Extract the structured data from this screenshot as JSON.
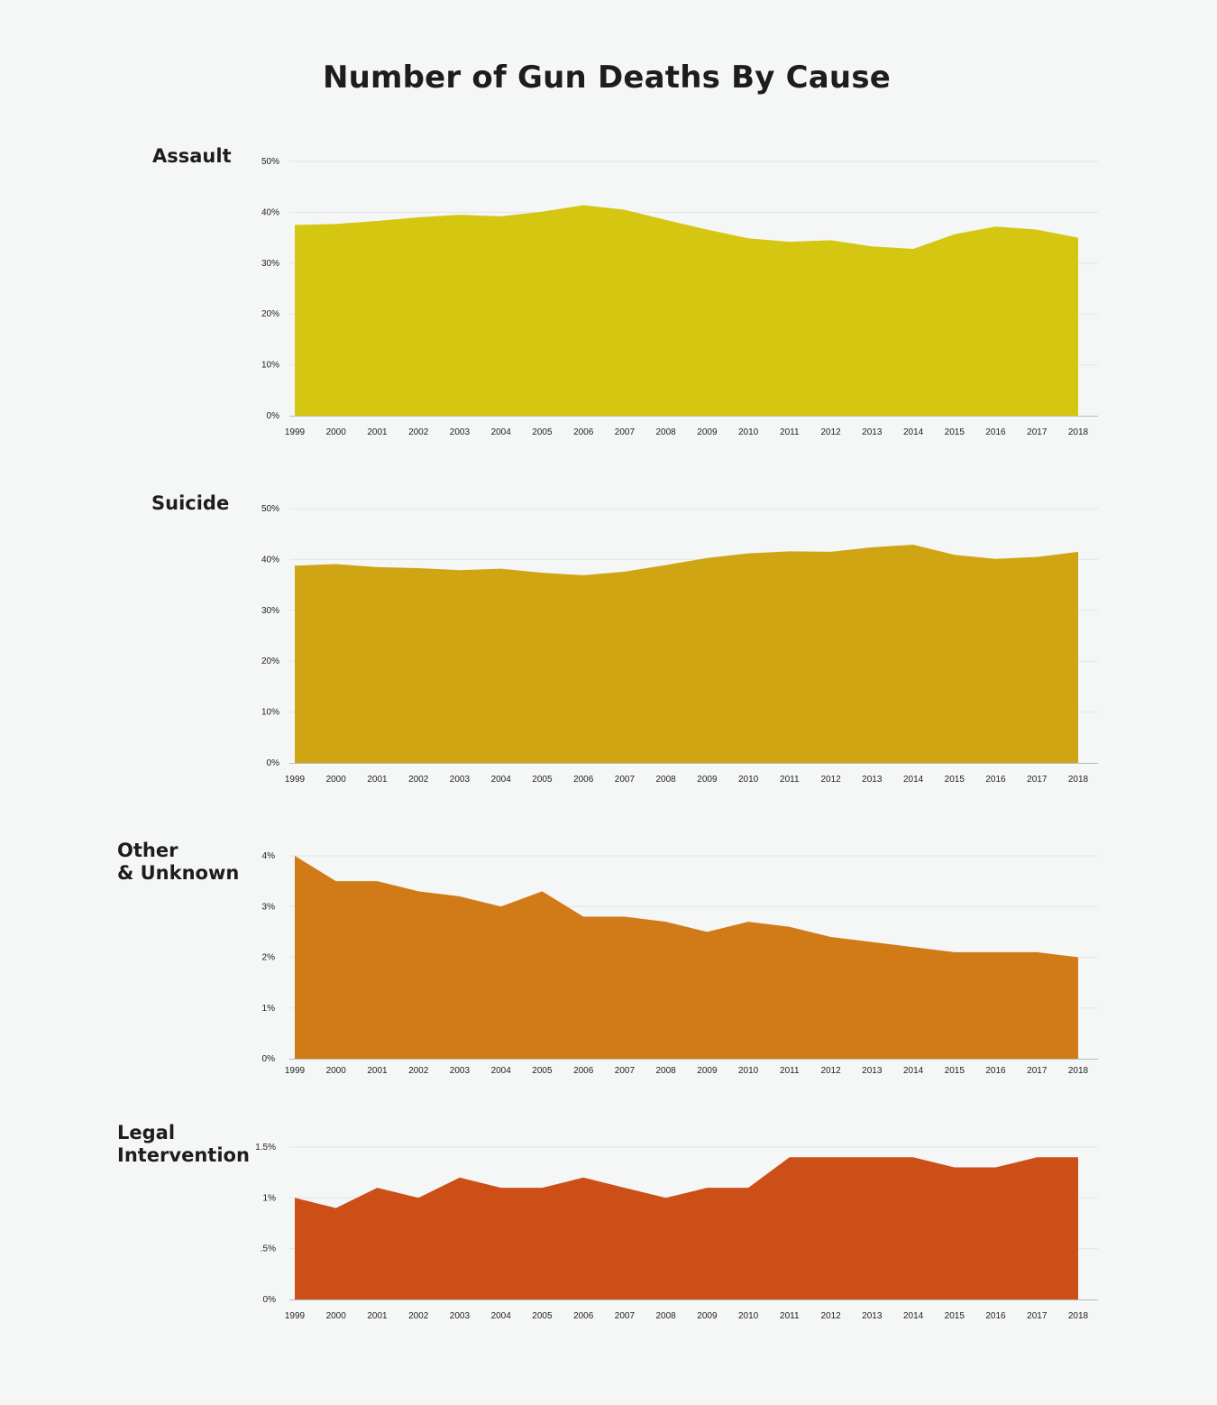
{
  "title": "Number of Gun Deaths By Cause",
  "chart_data": [
    {
      "type": "area",
      "label_lines": [
        "Assault"
      ],
      "color": "#d4c611",
      "x": [
        "1999",
        "2000",
        "2001",
        "2002",
        "2003",
        "2004",
        "2005",
        "2006",
        "2007",
        "2008",
        "2009",
        "2010",
        "2011",
        "2012",
        "2013",
        "2014",
        "2015",
        "2016",
        "2017",
        "2018"
      ],
      "values": [
        37.5,
        37.7,
        38.3,
        39.0,
        39.5,
        39.2,
        40.1,
        41.4,
        40.5,
        38.5,
        36.6,
        34.9,
        34.2,
        34.5,
        33.3,
        32.8,
        35.7,
        37.2,
        36.6,
        35.0
      ],
      "yticks": [
        "0%",
        "10%",
        "20%",
        "30%",
        "40%",
        "50%"
      ],
      "ylim": [
        0,
        50
      ],
      "grid": true
    },
    {
      "type": "area",
      "label_lines": [
        "Suicide"
      ],
      "color": "#cfa513",
      "x": [
        "1999",
        "2000",
        "2001",
        "2002",
        "2003",
        "2004",
        "2005",
        "2006",
        "2007",
        "2008",
        "2009",
        "2010",
        "2011",
        "2012",
        "2013",
        "2014",
        "2015",
        "2016",
        "2017",
        "2018"
      ],
      "values": [
        38.8,
        39.1,
        38.5,
        38.3,
        37.9,
        38.2,
        37.4,
        36.9,
        37.6,
        38.9,
        40.3,
        41.2,
        41.6,
        41.5,
        42.4,
        42.9,
        40.9,
        40.1,
        40.5,
        41.5
      ],
      "yticks": [
        "0%",
        "10%",
        "20%",
        "30%",
        "40%",
        "50%"
      ],
      "ylim": [
        0,
        50
      ],
      "grid": true
    },
    {
      "type": "area",
      "label_lines": [
        "Other",
        "& Unknown"
      ],
      "color": "#d07a18",
      "x": [
        "1999",
        "2000",
        "2001",
        "2002",
        "2003",
        "2004",
        "2005",
        "2006",
        "2007",
        "2008",
        "2009",
        "2010",
        "2011",
        "2012",
        "2013",
        "2014",
        "2015",
        "2016",
        "2017",
        "2018"
      ],
      "values": [
        4.0,
        3.5,
        3.5,
        3.3,
        3.2,
        3.0,
        3.3,
        2.8,
        2.8,
        2.7,
        2.5,
        2.7,
        2.6,
        2.4,
        2.3,
        2.2,
        2.1,
        2.1,
        2.1,
        2.0
      ],
      "yticks": [
        "0%",
        "1%",
        "2%",
        "3%",
        "4%"
      ],
      "ylim": [
        0,
        4
      ],
      "grid": true
    },
    {
      "type": "area",
      "label_lines": [
        "Legal",
        "Intervention"
      ],
      "color": "#cc4f18",
      "x": [
        "1999",
        "2000",
        "2001",
        "2002",
        "2003",
        "2004",
        "2005",
        "2006",
        "2007",
        "2008",
        "2009",
        "2010",
        "2011",
        "2012",
        "2013",
        "2014",
        "2015",
        "2016",
        "2017",
        "2018"
      ],
      "values": [
        1.0,
        0.9,
        1.1,
        1.0,
        1.2,
        1.1,
        1.1,
        1.2,
        1.1,
        1.0,
        1.1,
        1.1,
        1.4,
        1.4,
        1.4,
        1.4,
        1.3,
        1.3,
        1.4,
        1.4
      ],
      "yticks": [
        "0%",
        ".5%",
        "1%",
        "1.5%"
      ],
      "ylim": [
        0,
        1.5
      ],
      "grid": true
    }
  ]
}
